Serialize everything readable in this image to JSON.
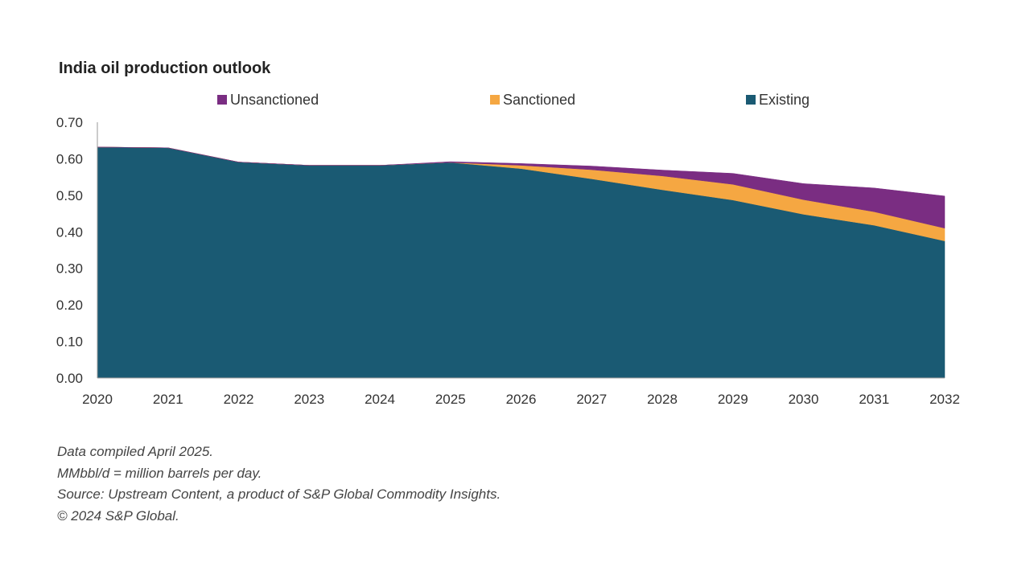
{
  "title": "India oil production outlook",
  "chart_data": {
    "type": "area",
    "stacked": true,
    "title": "India oil production outlook",
    "xlabel": "",
    "ylabel": "",
    "categories": [
      "2020",
      "2021",
      "2022",
      "2023",
      "2024",
      "2025",
      "2026",
      "2027",
      "2028",
      "2029",
      "2030",
      "2031",
      "2032"
    ],
    "yticks": [
      "0.00",
      "0.10",
      "0.20",
      "0.30",
      "0.40",
      "0.50",
      "0.60",
      "0.70"
    ],
    "ylim": [
      0,
      0.7
    ],
    "legend_position": "top",
    "grid": false,
    "series": [
      {
        "name": "Existing",
        "color": "#1a5a73",
        "values": [
          0.632,
          0.63,
          0.591,
          0.582,
          0.582,
          0.59,
          0.573,
          0.545,
          0.515,
          0.487,
          0.448,
          0.418,
          0.375
        ]
      },
      {
        "name": "Sanctioned",
        "color": "#f5a742",
        "values": [
          0,
          0,
          0,
          0,
          0,
          0,
          0.009,
          0.025,
          0.038,
          0.043,
          0.04,
          0.037,
          0.035
        ]
      },
      {
        "name": "Unsanctioned",
        "color": "#7a2d82",
        "values": [
          0,
          0,
          0,
          0,
          0,
          0.002,
          0.005,
          0.01,
          0.016,
          0.03,
          0.044,
          0.065,
          0.088
        ]
      }
    ],
    "legend_order": [
      "Unsanctioned",
      "Sanctioned",
      "Existing"
    ]
  },
  "footnotes": [
    "Data compiled April 2025.",
    "MMbbl/d = million barrels per day.",
    "Source: Upstream Content, a product of S&P Global Commodity Insights.",
    "© 2024 S&P Global."
  ]
}
